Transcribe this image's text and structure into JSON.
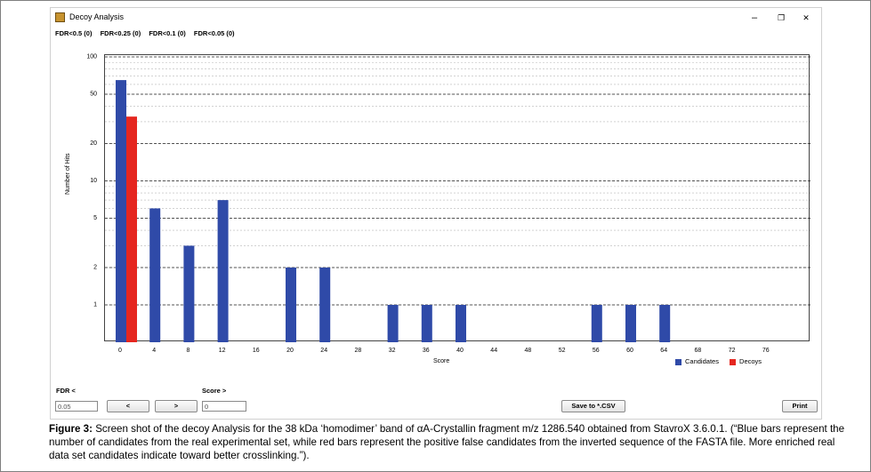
{
  "window": {
    "title": "Decoy Analysis",
    "controls": {
      "minimize": "–",
      "maximize": "❐",
      "close": "✕"
    }
  },
  "fdr_summary": [
    "FDR<0.5 (0)",
    "FDR<0.25 (0)",
    "FDR<0.1 (0)",
    "FDR<0.05 (0)"
  ],
  "chart_data": {
    "type": "bar",
    "xlabel": "Score",
    "ylabel": "Number of Hits",
    "y_scale": "log",
    "ylim": [
      0.5,
      100
    ],
    "ytick_labels": [
      "1",
      "2",
      "5",
      "10",
      "20",
      "50",
      "100"
    ],
    "xtick_labels": [
      "0",
      "4",
      "8",
      "12",
      "16",
      "20",
      "24",
      "28",
      "32",
      "36",
      "40",
      "44",
      "48",
      "52",
      "56",
      "60",
      "64",
      "68",
      "72",
      "76"
    ],
    "series": [
      {
        "name": "Candidates",
        "color": "#2f4aa8",
        "points": [
          {
            "x": 0,
            "y": 65
          },
          {
            "x": 4,
            "y": 6
          },
          {
            "x": 8,
            "y": 3
          },
          {
            "x": 12,
            "y": 7
          },
          {
            "x": 20,
            "y": 2
          },
          {
            "x": 24,
            "y": 2
          },
          {
            "x": 32,
            "y": 1
          },
          {
            "x": 36,
            "y": 1
          },
          {
            "x": 40,
            "y": 1
          },
          {
            "x": 56,
            "y": 1
          },
          {
            "x": 60,
            "y": 1
          },
          {
            "x": 64,
            "y": 1
          }
        ]
      },
      {
        "name": "Decoys",
        "color": "#e5261f",
        "points": [
          {
            "x": 0,
            "y": 33
          }
        ]
      }
    ],
    "legend_position": "bottom-right"
  },
  "controls": {
    "fdr_label": "FDR <",
    "fdr_value": "0.05",
    "prev_label": "<",
    "next_label": ">",
    "score_label": "Score >",
    "score_value": "0",
    "save_label": "Save to *.CSV",
    "print_label": "Print"
  },
  "caption": {
    "prefix": "Figure 3:",
    "text": " Screen shot of the decoy Analysis for the 38 kDa ‘homodimer’ band of αA-Crystallin fragment m/z 1286.540 obtained from StavroX 3.6.0.1. (“Blue bars represent the number of candidates from the real experimental set, while red bars represent the positive false candidates from the inverted sequence of the FASTA file. More enriched real data set candidates indicate toward better crosslinking.”)."
  }
}
